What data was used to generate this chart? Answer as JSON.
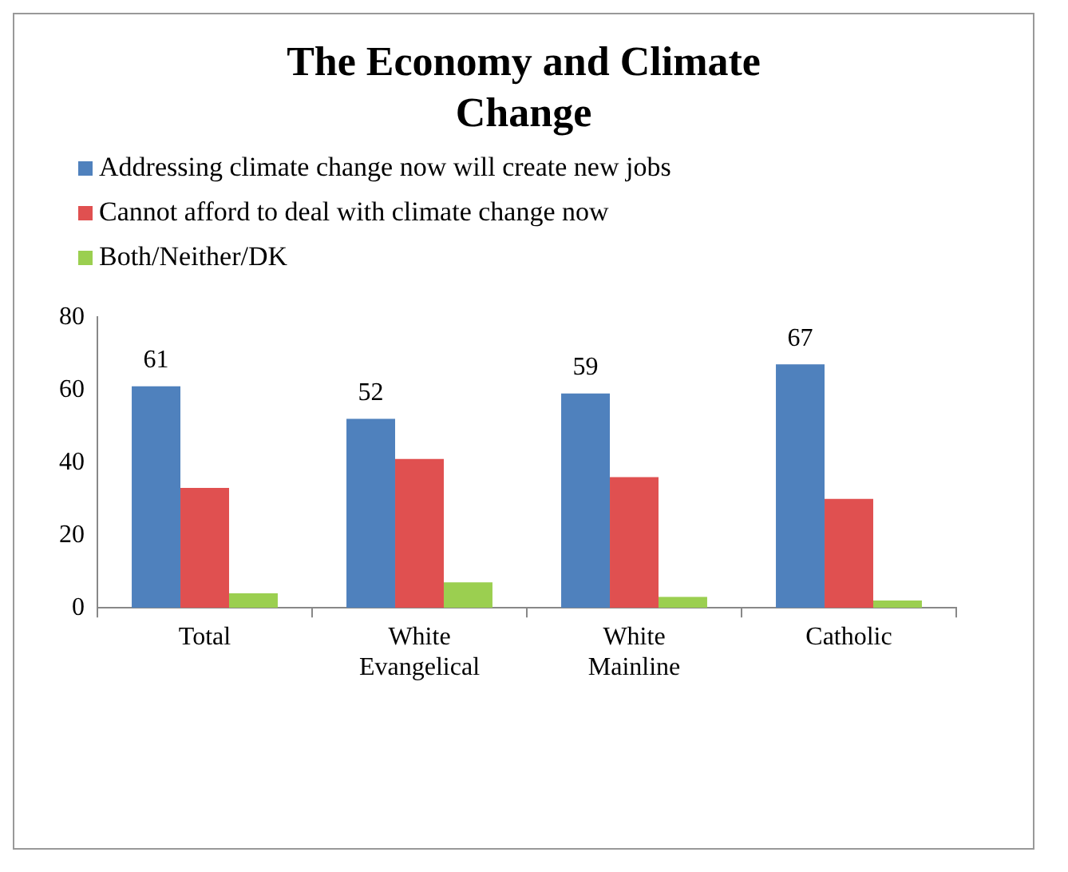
{
  "chart_data": {
    "type": "bar",
    "title": "The Economy and Climate Change",
    "categories": [
      "Total",
      "White Evangelical",
      "White Mainline",
      "Catholic"
    ],
    "series": [
      {
        "name": "Addressing climate change now will create new jobs",
        "color": "#4f81bd",
        "values": [
          61,
          52,
          59,
          67
        ],
        "value_labels": [
          "61",
          "52",
          "59",
          "67"
        ]
      },
      {
        "name": "Cannot afford to deal with climate change now",
        "color": "#e05050",
        "values": [
          33,
          41,
          36,
          30
        ]
      },
      {
        "name": "Both/Neither/DK",
        "color": "#9bcf50",
        "values": [
          4,
          7,
          3,
          2
        ]
      }
    ],
    "ylim": [
      0,
      80
    ],
    "yticks": [
      0,
      20,
      40,
      60,
      80
    ],
    "grid": false,
    "legend": "top"
  }
}
